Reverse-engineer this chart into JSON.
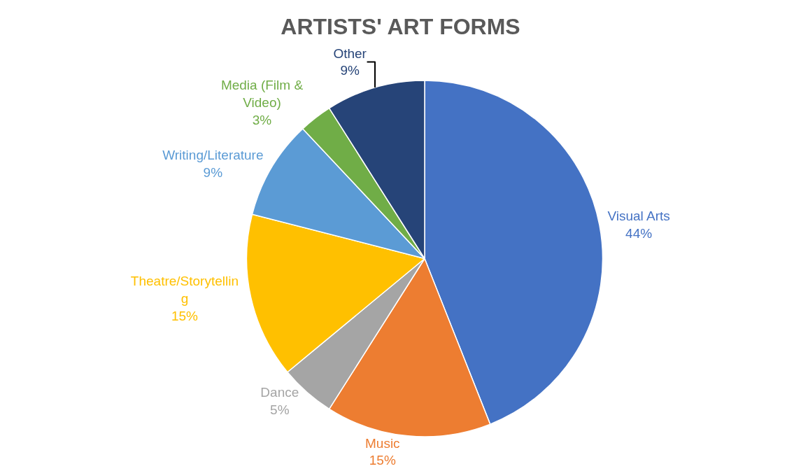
{
  "chart_data": {
    "type": "pie",
    "title": "ARTISTS' ART FORMS",
    "categories": [
      "Visual Arts",
      "Music",
      "Dance",
      "Theatre/Storytelling",
      "Writing/Literature",
      "Media (Film & Video)",
      "Other"
    ],
    "values": [
      44,
      15,
      5,
      15,
      9,
      3,
      9
    ],
    "value_labels": [
      "44%",
      "15%",
      "5%",
      "15%",
      "9%",
      "3%",
      "9%"
    ],
    "colors": [
      "#4472c4",
      "#ed7d31",
      "#a5a5a5",
      "#ffc000",
      "#5b9bd5",
      "#70ad47",
      "#264478"
    ],
    "legend": false
  }
}
